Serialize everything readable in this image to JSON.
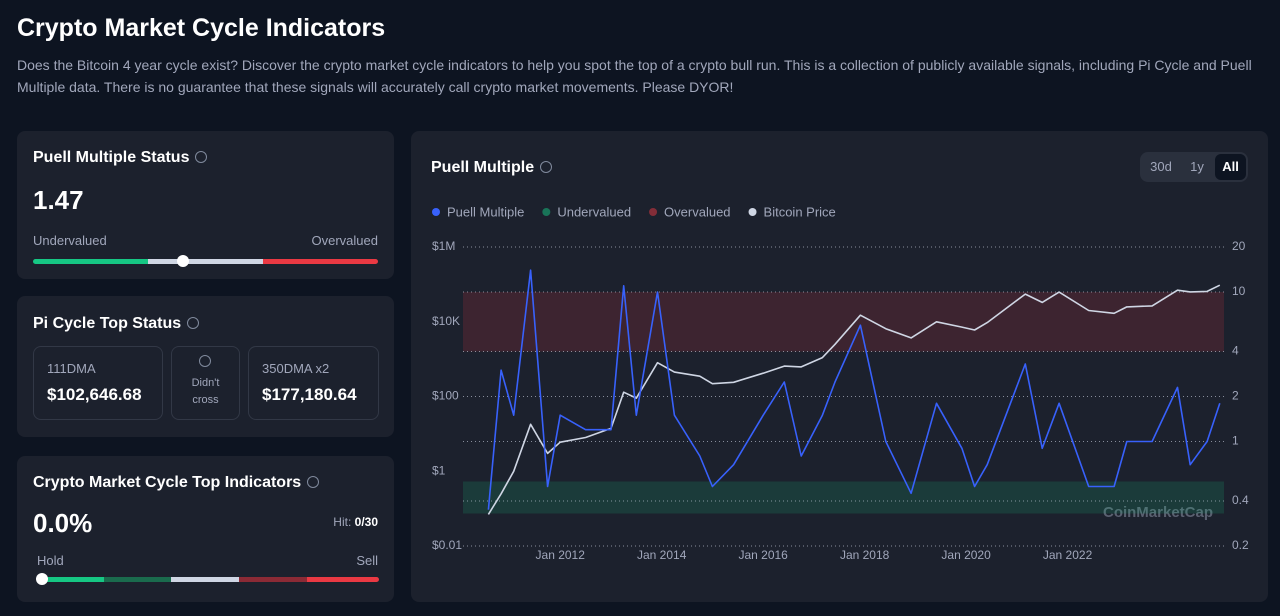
{
  "header": {
    "title": "Crypto Market Cycle Indicators",
    "description": "Does the Bitcoin 4 year cycle exist? Discover the crypto market cycle indicators to help you spot the top of a crypto bull run. This is a collection of publicly available signals, including Pi Cycle and Puell Multiple data. There is no guarantee that these signals will accurately call crypto market movements. Please DYOR!"
  },
  "puell_card": {
    "title": "Puell Multiple Status",
    "value": "1.47",
    "min_label": "Undervalued",
    "max_label": "Overvalued"
  },
  "pi_card": {
    "title": "Pi Cycle Top Status",
    "left": {
      "label": "111DMA",
      "value": "$102,646.68"
    },
    "middle": {
      "line1": "Didn't",
      "line2": "cross"
    },
    "right": {
      "label": "350DMA x2",
      "value": "$177,180.64"
    }
  },
  "top_card": {
    "title": "Crypto Market Cycle Top Indicators",
    "value": "0.0%",
    "hit_label": "Hit:",
    "hit_value": "0/30",
    "min_label": "Hold",
    "max_label": "Sell"
  },
  "tabs": [
    "30d",
    "1y",
    "All"
  ],
  "watermark": "CoinMarketCap",
  "chart_data": {
    "type": "line",
    "title": "Puell Multiple",
    "x": [
      "2010-08",
      "2010-11",
      "2011-02",
      "2011-06",
      "2011-10",
      "2012-01",
      "2012-07",
      "2013-01",
      "2013-04",
      "2013-07",
      "2013-12",
      "2014-04",
      "2014-10",
      "2015-01",
      "2015-06",
      "2016-01",
      "2016-06",
      "2016-10",
      "2017-03",
      "2017-06",
      "2017-12",
      "2018-06",
      "2018-12",
      "2019-06",
      "2019-12",
      "2020-03",
      "2020-06",
      "2021-03",
      "2021-07",
      "2021-11",
      "2022-06",
      "2022-12",
      "2023-03",
      "2023-09",
      "2024-03",
      "2024-06",
      "2024-10",
      "2025-01"
    ],
    "series": [
      {
        "name": "Puell Multiple",
        "color": "#3861fb",
        "axis": "y2",
        "values": [
          0.35,
          3,
          1.5,
          14,
          0.5,
          1.5,
          1.2,
          1.2,
          11,
          1.5,
          10,
          1.5,
          0.8,
          0.5,
          0.7,
          1.5,
          2.5,
          0.8,
          1.5,
          2.5,
          6,
          1,
          0.45,
          1.8,
          0.9,
          0.5,
          0.7,
          3.3,
          0.9,
          1.8,
          0.5,
          0.5,
          1,
          1,
          2.3,
          0.7,
          1,
          1.8
        ]
      },
      {
        "name": "Bitcoin Price",
        "color": "#cfd6e4",
        "values": [
          0.07,
          0.25,
          1,
          18,
          3,
          6,
          8,
          14,
          130,
          90,
          800,
          450,
          350,
          220,
          240,
          420,
          650,
          620,
          1100,
          2500,
          15000,
          6500,
          3700,
          10000,
          7200,
          6000,
          9500,
          55000,
          33000,
          62000,
          20000,
          16800,
          25000,
          26500,
          70000,
          63000,
          65000,
          95000
        ]
      }
    ],
    "bands": [
      {
        "name": "Undervalued",
        "color": "#16c784",
        "range": [
          0.33,
          0.54
        ]
      },
      {
        "name": "Overvalued",
        "color": "#ea3943",
        "range": [
          4,
          10
        ]
      }
    ],
    "log_scale": true,
    "xlim": [
      "2010-02",
      "2025-02"
    ],
    "xticks": [
      {
        "value": "2012-01",
        "label": "Jan 2012"
      },
      {
        "value": "2014-01",
        "label": "Jan 2014"
      },
      {
        "value": "2016-01",
        "label": "Jan 2016"
      },
      {
        "value": "2018-01",
        "label": "Jan 2018"
      },
      {
        "value": "2020-01",
        "label": "Jan 2020"
      },
      {
        "value": "2022-01",
        "label": "Jan 2022"
      }
    ],
    "ylim": [
      0.01,
      1000000
    ],
    "yticks": [
      {
        "value": 1000000,
        "label": "$1M"
      },
      {
        "value": 10000,
        "label": "$10K"
      },
      {
        "value": 100,
        "label": "$100"
      },
      {
        "value": 1,
        "label": "$1"
      },
      {
        "value": 0.01,
        "label": "$0.01"
      }
    ],
    "y2lim": [
      0.2,
      20
    ],
    "y2ticks": [
      20,
      10,
      4,
      2,
      1,
      0.4,
      0.2
    ]
  }
}
